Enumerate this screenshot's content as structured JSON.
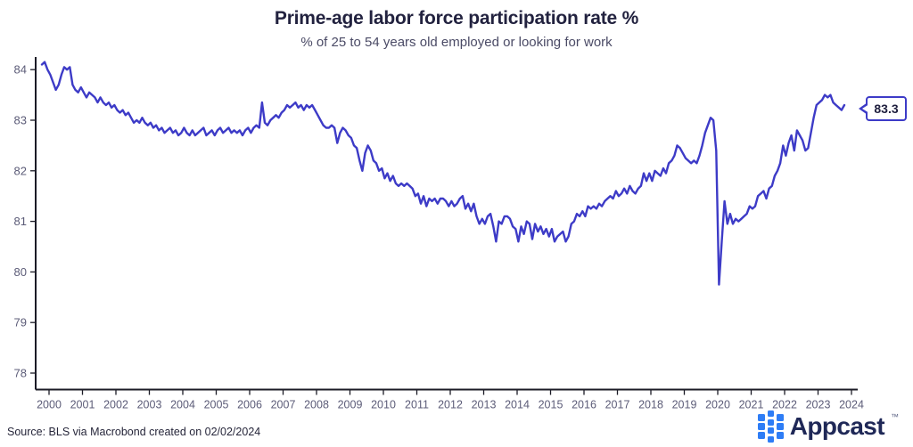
{
  "header": {
    "title": "Prime-age labor force participation rate %",
    "subtitle": "% of 25 to 54 years old employed or looking for work"
  },
  "callout": {
    "value": "83.3"
  },
  "footer": {
    "source": "Source: BLS via Macrobond created on 02/02/2024",
    "brand_name": "Appcast",
    "brand_trademark": "™"
  },
  "colors": {
    "line": "#3d3bc7",
    "axis": "#1b1b26",
    "tick_label": "#5c5c78",
    "title_text": "#22223f",
    "subtitle_text": "#4b4b66",
    "callout_border": "#3d3bc7",
    "brand_blue": "#2e7df6",
    "brand_navy": "#1f2857"
  },
  "chart_data": {
    "type": "line",
    "title": "Prime-age labor force participation rate %",
    "subtitle": "% of 25 to 54 years old employed or looking for work",
    "xlabel": "",
    "ylabel": "",
    "grid": false,
    "legend": false,
    "x_start_year": 2000,
    "x_step": "monthly",
    "x_end": "2024-01",
    "x_ticks": [
      2000,
      2001,
      2002,
      2003,
      2004,
      2005,
      2006,
      2007,
      2008,
      2009,
      2010,
      2011,
      2012,
      2013,
      2014,
      2015,
      2016,
      2017,
      2018,
      2019,
      2020,
      2021,
      2022,
      2023,
      2024
    ],
    "y_ticks": [
      78,
      79,
      80,
      81,
      82,
      83,
      84
    ],
    "ylim": [
      77.6,
      84.4
    ],
    "last_value_label": "83.3",
    "series": [
      {
        "name": "Prime-age labor force participation rate %",
        "monthly_values": [
          84.1,
          84.15,
          84.0,
          83.9,
          83.75,
          83.6,
          83.7,
          83.9,
          84.05,
          84.0,
          84.05,
          83.7,
          83.6,
          83.55,
          83.65,
          83.55,
          83.45,
          83.55,
          83.5,
          83.45,
          83.35,
          83.45,
          83.35,
          83.3,
          83.35,
          83.25,
          83.3,
          83.2,
          83.15,
          83.2,
          83.1,
          83.15,
          83.05,
          82.95,
          83.0,
          82.95,
          83.05,
          82.95,
          82.9,
          82.95,
          82.85,
          82.9,
          82.8,
          82.85,
          82.75,
          82.8,
          82.85,
          82.75,
          82.8,
          82.7,
          82.75,
          82.85,
          82.75,
          82.7,
          82.8,
          82.7,
          82.75,
          82.8,
          82.85,
          82.7,
          82.75,
          82.8,
          82.7,
          82.8,
          82.85,
          82.75,
          82.8,
          82.85,
          82.75,
          82.8,
          82.75,
          82.8,
          82.7,
          82.8,
          82.85,
          82.75,
          82.85,
          82.9,
          82.85,
          83.35,
          82.95,
          82.9,
          83.0,
          83.05,
          83.1,
          83.05,
          83.15,
          83.2,
          83.3,
          83.25,
          83.3,
          83.35,
          83.25,
          83.3,
          83.2,
          83.3,
          83.25,
          83.3,
          83.2,
          83.1,
          83.0,
          82.9,
          82.85,
          82.85,
          82.9,
          82.85,
          82.55,
          82.75,
          82.85,
          82.8,
          82.7,
          82.65,
          82.5,
          82.45,
          82.2,
          82.0,
          82.35,
          82.5,
          82.4,
          82.2,
          82.15,
          82.0,
          82.05,
          81.85,
          81.95,
          81.8,
          81.9,
          81.75,
          81.7,
          81.75,
          81.7,
          81.75,
          81.7,
          81.65,
          81.5,
          81.55,
          81.35,
          81.5,
          81.3,
          81.45,
          81.4,
          81.45,
          81.35,
          81.45,
          81.45,
          81.4,
          81.3,
          81.4,
          81.3,
          81.35,
          81.45,
          81.5,
          81.25,
          81.35,
          81.2,
          81.35,
          81.1,
          80.95,
          81.05,
          80.95,
          81.1,
          81.15,
          80.9,
          80.6,
          81.0,
          80.95,
          81.1,
          81.1,
          81.05,
          80.9,
          80.85,
          80.6,
          80.9,
          80.75,
          81.0,
          80.95,
          80.65,
          80.95,
          80.8,
          80.9,
          80.75,
          80.85,
          80.7,
          80.85,
          80.6,
          80.7,
          80.75,
          80.8,
          80.6,
          80.7,
          80.95,
          81.0,
          81.15,
          81.1,
          81.2,
          81.1,
          81.3,
          81.25,
          81.3,
          81.25,
          81.35,
          81.3,
          81.4,
          81.45,
          81.5,
          81.45,
          81.6,
          81.5,
          81.55,
          81.65,
          81.55,
          81.7,
          81.6,
          81.55,
          81.65,
          81.7,
          81.95,
          81.8,
          81.95,
          81.8,
          82.0,
          81.95,
          81.9,
          82.05,
          81.95,
          82.15,
          82.2,
          82.3,
          82.5,
          82.45,
          82.35,
          82.25,
          82.2,
          82.15,
          82.2,
          82.15,
          82.3,
          82.5,
          82.75,
          82.9,
          83.05,
          83.0,
          82.4,
          79.75,
          80.6,
          81.4,
          80.95,
          81.15,
          80.95,
          81.05,
          81.0,
          81.05,
          81.1,
          81.15,
          81.3,
          81.25,
          81.3,
          81.5,
          81.55,
          81.6,
          81.45,
          81.65,
          81.7,
          81.9,
          82.0,
          82.15,
          82.5,
          82.3,
          82.55,
          82.7,
          82.4,
          82.8,
          82.7,
          82.6,
          82.4,
          82.45,
          82.75,
          83.05,
          83.3,
          83.35,
          83.4,
          83.5,
          83.45,
          83.5,
          83.35,
          83.3,
          83.25,
          83.2,
          83.3
        ]
      }
    ]
  }
}
